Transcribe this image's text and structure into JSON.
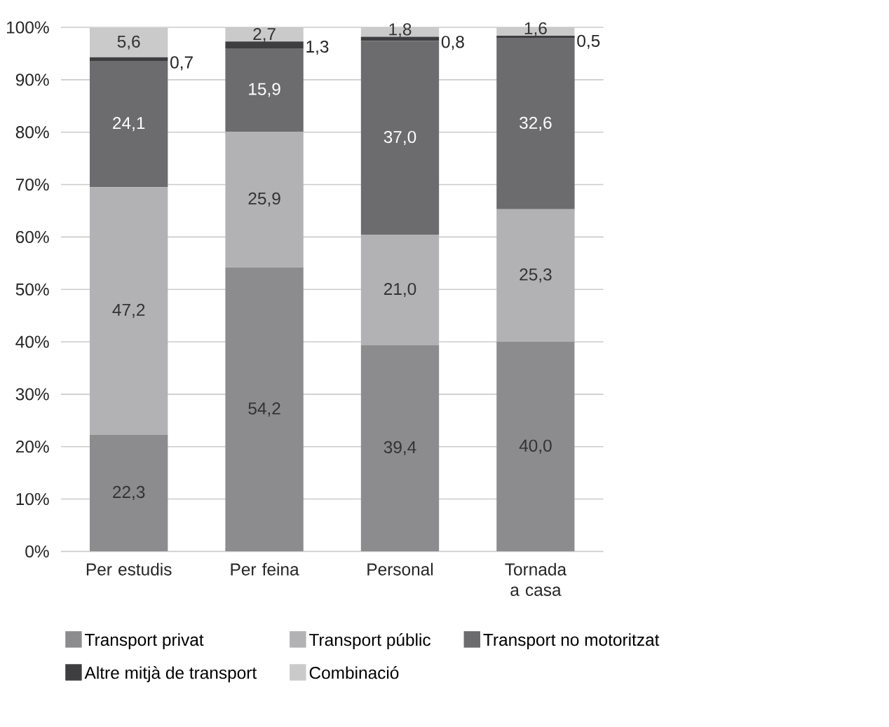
{
  "chart_data": {
    "type": "bar",
    "stacked": true,
    "categories": [
      "Per estudis",
      "Per feina",
      "Personal",
      "Tornada a casa"
    ],
    "series": [
      {
        "name": "Transport privat",
        "color": "#8c8c8e",
        "values": [
          22.3,
          54.2,
          39.4,
          40.0
        ],
        "value_labels": [
          "22,3",
          "54,2",
          "39,4",
          "40,0"
        ]
      },
      {
        "name": "Transport públic",
        "color": "#b2b2b4",
        "values": [
          47.2,
          25.9,
          21.0,
          25.3
        ],
        "value_labels": [
          "47,2",
          "25,9",
          "21,0",
          "25,3"
        ]
      },
      {
        "name": "Transport no motoritzat",
        "color": "#6c6c6e",
        "values": [
          24.1,
          15.9,
          37.0,
          32.6
        ],
        "value_labels": [
          "24,1",
          "15,9",
          "37,0",
          "32,6"
        ]
      },
      {
        "name": "Altre mitjà de transport",
        "color": "#3e3e40",
        "values": [
          0.7,
          1.3,
          0.8,
          0.5
        ],
        "value_labels": [
          "0,7",
          "1,3",
          "0,8",
          "0,5"
        ]
      },
      {
        "name": "Combinació",
        "color": "#cacacb",
        "values": [
          5.6,
          2.7,
          1.8,
          1.6
        ],
        "value_labels": [
          "5,6",
          "2,7",
          "1,8",
          "1,6"
        ]
      }
    ],
    "ylim": [
      0,
      100
    ],
    "yticks": [
      {
        "value": 0,
        "label": "0%"
      },
      {
        "value": 10,
        "label": "10%"
      },
      {
        "value": 20,
        "label": "20%"
      },
      {
        "value": 30,
        "label": "30%"
      },
      {
        "value": 40,
        "label": "40%"
      },
      {
        "value": 50,
        "label": "50%"
      },
      {
        "value": 60,
        "label": "60%"
      },
      {
        "value": 70,
        "label": "70%"
      },
      {
        "value": 80,
        "label": "80%"
      },
      {
        "value": 90,
        "label": "90%"
      },
      {
        "value": 100,
        "label": "100%"
      }
    ],
    "grid": "y",
    "legend": "bottom"
  }
}
